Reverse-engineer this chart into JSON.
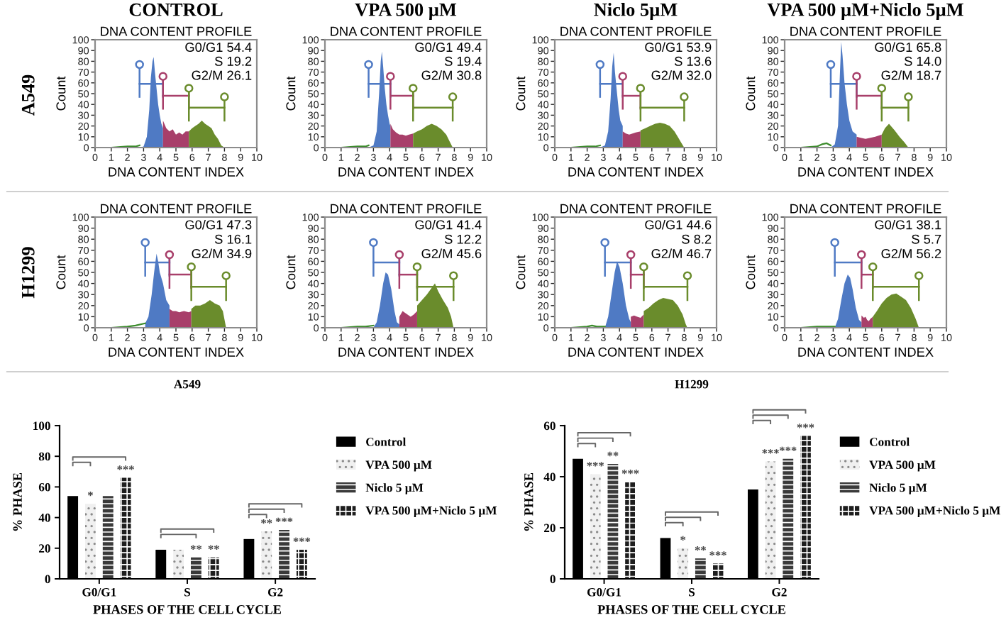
{
  "chart_data": [
    {
      "type": "other",
      "title": "A549"
    },
    {
      "type": "area",
      "title": "CONTROL",
      "subtitle": "DNA CONTENT PROFILE",
      "xlabel": "DNA CONTENT INDEX",
      "ylabel": "Count",
      "xlim": [
        0,
        10
      ],
      "ylim": [
        0,
        100
      ],
      "xticks": [
        0,
        1,
        2,
        3,
        4,
        5,
        6,
        7,
        8,
        9,
        10
      ],
      "yticks": [
        0,
        10,
        20,
        30,
        40,
        50,
        60,
        70,
        80,
        90,
        100
      ],
      "annotations": [
        "G0/G1 54.4",
        "S 19.2",
        "G2/M 26.1"
      ],
      "series": [
        {
          "type": "line",
          "color": "#3c8c2c",
          "x": [
            0,
            1,
            2,
            2.5,
            2.75
          ],
          "values": [
            0,
            0,
            1,
            1,
            2
          ]
        },
        {
          "color": "#4f7ac4",
          "x": [
            2.75,
            3.0,
            3.2,
            3.35,
            3.45,
            3.55,
            3.62,
            3.7,
            3.8,
            3.9,
            4.0,
            4.1,
            4.2
          ],
          "values": [
            0,
            1,
            10,
            35,
            65,
            80,
            84,
            70,
            55,
            40,
            30,
            22,
            18
          ]
        },
        {
          "color": "#a83f6a",
          "x": [
            4.2,
            4.4,
            4.6,
            4.8,
            5.0,
            5.2,
            5.4,
            5.6,
            5.8
          ],
          "values": [
            25,
            18,
            15,
            17,
            12,
            14,
            12,
            15,
            15
          ]
        },
        {
          "color": "#6a8c2c",
          "x": [
            5.8,
            6.0,
            6.2,
            6.4,
            6.6,
            6.8,
            7.0,
            7.2,
            7.4,
            7.6,
            7.8,
            8.0
          ],
          "values": [
            15,
            18,
            20,
            22,
            25,
            22,
            20,
            18,
            12,
            8,
            2,
            0
          ]
        }
      ]
    },
    {
      "type": "area",
      "title": "VPA 500 µM",
      "subtitle": "DNA CONTENT PROFILE",
      "xlabel": "DNA CONTENT INDEX",
      "ylabel": "Count",
      "xlim": [
        0,
        10
      ],
      "ylim": [
        0,
        100
      ],
      "xticks": [
        0,
        1,
        2,
        3,
        4,
        5,
        6,
        7,
        8,
        9,
        10
      ],
      "yticks": [
        0,
        10,
        20,
        30,
        40,
        50,
        60,
        70,
        80,
        90,
        100
      ],
      "annotations": [
        "G0/G1 49.4",
        "S 19.4",
        "G2/M 30.8"
      ],
      "series": [
        {
          "type": "line",
          "color": "#3c8c2c",
          "x": [
            0,
            1,
            2,
            2.5,
            2.7
          ],
          "values": [
            0,
            0,
            1,
            1,
            2
          ]
        },
        {
          "color": "#4f7ac4",
          "x": [
            2.7,
            3.0,
            3.2,
            3.35,
            3.45,
            3.52,
            3.6,
            3.7,
            3.8,
            3.9,
            4.0,
            4.05
          ],
          "values": [
            0,
            2,
            15,
            50,
            80,
            89,
            75,
            55,
            40,
            30,
            22,
            20
          ]
        },
        {
          "color": "#a83f6a",
          "x": [
            4.05,
            4.2,
            4.4,
            4.6,
            4.8,
            5.0,
            5.2,
            5.45
          ],
          "values": [
            22,
            17,
            14,
            12,
            12,
            11,
            12,
            13
          ]
        },
        {
          "color": "#6a8c2c",
          "x": [
            5.45,
            5.7,
            6.0,
            6.3,
            6.6,
            6.9,
            7.2,
            7.5,
            7.7,
            7.9
          ],
          "values": [
            13,
            15,
            17,
            20,
            22,
            20,
            17,
            12,
            6,
            0
          ]
        }
      ]
    },
    {
      "type": "area",
      "title": "Niclo 5µM",
      "subtitle": "DNA CONTENT PROFILE",
      "xlabel": "DNA CONTENT INDEX",
      "ylabel": "Count",
      "xlim": [
        0,
        10
      ],
      "ylim": [
        0,
        100
      ],
      "xticks": [
        0,
        1,
        2,
        3,
        4,
        5,
        6,
        7,
        8,
        9,
        10
      ],
      "yticks": [
        0,
        10,
        20,
        30,
        40,
        50,
        60,
        70,
        80,
        90,
        100
      ],
      "annotations": [
        "G0/G1 53.9",
        "S 13.6",
        "G2/M 32.0"
      ],
      "series": [
        {
          "type": "line",
          "color": "#3c8c2c",
          "x": [
            0,
            1,
            2,
            2.5,
            2.8
          ],
          "values": [
            0,
            0,
            1,
            1,
            2
          ]
        },
        {
          "color": "#4f7ac4",
          "x": [
            2.8,
            3.1,
            3.3,
            3.45,
            3.55,
            3.64,
            3.72,
            3.85,
            3.95,
            4.05,
            4.2
          ],
          "values": [
            0,
            2,
            15,
            45,
            75,
            88,
            70,
            50,
            35,
            25,
            20
          ]
        },
        {
          "color": "#a83f6a",
          "x": [
            4.2,
            4.4,
            4.6,
            4.8,
            5.0,
            5.3
          ],
          "values": [
            15,
            13,
            12,
            13,
            14,
            15
          ]
        },
        {
          "color": "#6a8c2c",
          "x": [
            5.3,
            5.6,
            5.9,
            6.2,
            6.5,
            6.8,
            7.1,
            7.4,
            7.6,
            7.8,
            8.0
          ],
          "values": [
            16,
            18,
            20,
            22,
            23,
            22,
            20,
            15,
            10,
            5,
            0
          ]
        }
      ]
    },
    {
      "type": "area",
      "title": "VPA 500 µM+Niclo 5µM",
      "subtitle": "DNA CONTENT PROFILE",
      "xlabel": "DNA CONTENT INDEX",
      "ylabel": "Count",
      "xlim": [
        0,
        10
      ],
      "ylim": [
        0,
        100
      ],
      "xticks": [
        0,
        1,
        2,
        3,
        4,
        5,
        6,
        7,
        8,
        9,
        10
      ],
      "yticks": [
        0,
        10,
        20,
        30,
        40,
        50,
        60,
        70,
        80,
        90,
        100
      ],
      "annotations": [
        "G0/G1 65.8",
        "S 14.0",
        "G2/M 18.7"
      ],
      "series": [
        {
          "type": "line",
          "color": "#3c8c2c",
          "x": [
            0,
            1,
            2,
            2.3,
            2.6,
            2.85
          ],
          "values": [
            0,
            0,
            1,
            3,
            4,
            2
          ]
        },
        {
          "color": "#4f7ac4",
          "x": [
            2.85,
            3.1,
            3.3,
            3.42,
            3.5,
            3.58,
            3.7,
            3.85,
            4.0,
            4.2,
            4.45
          ],
          "values": [
            0,
            3,
            20,
            70,
            98,
            85,
            60,
            40,
            25,
            15,
            12
          ]
        },
        {
          "color": "#a83f6a",
          "x": [
            4.45,
            4.7,
            5.0,
            5.3,
            5.6,
            6.0
          ],
          "values": [
            10,
            9,
            8,
            9,
            10,
            12
          ]
        },
        {
          "color": "#6a8c2c",
          "x": [
            6.0,
            6.2,
            6.45,
            6.8,
            7.1,
            7.4,
            7.65
          ],
          "values": [
            12,
            18,
            22,
            16,
            10,
            5,
            0
          ]
        }
      ]
    },
    {
      "type": "other",
      "title": "H1299"
    },
    {
      "type": "area",
      "title": "DNA CONTENT PROFILE",
      "xlabel": "DNA CONTENT INDEX",
      "ylabel": "Count",
      "xlim": [
        0,
        10
      ],
      "ylim": [
        0,
        100
      ],
      "xticks": [
        0,
        1,
        2,
        3,
        4,
        5,
        6,
        7,
        8,
        9,
        10
      ],
      "yticks": [
        0,
        10,
        20,
        30,
        40,
        50,
        60,
        70,
        80,
        90,
        100
      ],
      "annotations": [
        "G0/G1 47.3",
        "S 16.1",
        "G2/M 34.9"
      ],
      "series": [
        {
          "type": "line",
          "color": "#3c8c2c",
          "x": [
            0,
            1,
            2,
            2.5,
            3.1
          ],
          "values": [
            0,
            0,
            1,
            2,
            4
          ]
        },
        {
          "color": "#4f7ac4",
          "x": [
            3.1,
            3.3,
            3.5,
            3.65,
            3.8,
            3.9,
            4.0,
            4.2,
            4.4,
            4.6
          ],
          "values": [
            4,
            10,
            30,
            50,
            67,
            60,
            50,
            40,
            25,
            20
          ]
        },
        {
          "color": "#a83f6a",
          "x": [
            4.6,
            4.8,
            5.0,
            5.2,
            5.5,
            5.8,
            5.95
          ],
          "values": [
            17,
            15,
            15,
            14,
            15,
            14,
            15
          ]
        },
        {
          "color": "#6a8c2c",
          "x": [
            5.95,
            6.2,
            6.5,
            6.8,
            7.1,
            7.4,
            7.7,
            7.9,
            8.1
          ],
          "values": [
            17,
            20,
            20,
            22,
            25,
            22,
            20,
            15,
            0
          ]
        }
      ]
    },
    {
      "type": "area",
      "title": "DNA CONTENT PROFILE",
      "xlabel": "DNA CONTENT INDEX",
      "ylabel": "Count",
      "xlim": [
        0,
        10
      ],
      "ylim": [
        0,
        100
      ],
      "xticks": [
        0,
        1,
        2,
        3,
        4,
        5,
        6,
        7,
        8,
        9,
        10
      ],
      "yticks": [
        0,
        10,
        20,
        30,
        40,
        50,
        60,
        70,
        80,
        90,
        100
      ],
      "annotations": [
        "G0/G1 41.4",
        "S 12.2",
        "G2/M 45.6"
      ],
      "series": [
        {
          "type": "line",
          "color": "#3c8c2c",
          "x": [
            0,
            1,
            2,
            2.5,
            3.0
          ],
          "values": [
            0,
            0,
            1,
            1,
            2
          ]
        },
        {
          "color": "#4f7ac4",
          "x": [
            3.0,
            3.2,
            3.4,
            3.6,
            3.75,
            3.9,
            4.1,
            4.3,
            4.45,
            4.6
          ],
          "values": [
            0,
            5,
            20,
            40,
            50,
            48,
            35,
            15,
            5,
            3
          ]
        },
        {
          "color": "#a83f6a",
          "x": [
            4.6,
            4.8,
            5.0,
            5.3,
            5.5,
            5.7
          ],
          "values": [
            10,
            15,
            13,
            10,
            12,
            15
          ]
        },
        {
          "color": "#6a8c2c",
          "x": [
            5.7,
            6.0,
            6.3,
            6.6,
            6.8,
            7.0,
            7.3,
            7.6,
            7.8,
            7.95
          ],
          "values": [
            20,
            25,
            30,
            36,
            40,
            33,
            25,
            18,
            10,
            0
          ]
        }
      ]
    },
    {
      "type": "area",
      "title": "DNA CONTENT PROFILE",
      "xlabel": "DNA CONTENT INDEX",
      "ylabel": "Count",
      "xlim": [
        0,
        10
      ],
      "ylim": [
        0,
        100
      ],
      "xticks": [
        0,
        1,
        2,
        3,
        4,
        5,
        6,
        7,
        8,
        9,
        10
      ],
      "yticks": [
        0,
        10,
        20,
        30,
        40,
        50,
        60,
        70,
        80,
        90,
        100
      ],
      "annotations": [
        "G0/G1 44.6",
        "S 8.2",
        "G2/M 46.7"
      ],
      "series": [
        {
          "type": "line",
          "color": "#3c8c2c",
          "x": [
            0,
            1,
            2,
            2.3,
            2.6,
            3.1
          ],
          "values": [
            0,
            0,
            1,
            2,
            1,
            1
          ]
        },
        {
          "color": "#4f7ac4",
          "x": [
            3.1,
            3.3,
            3.5,
            3.7,
            3.85,
            4.0,
            4.2,
            4.4,
            4.6,
            4.7
          ],
          "values": [
            0,
            10,
            30,
            50,
            60,
            55,
            40,
            20,
            8,
            5
          ]
        },
        {
          "color": "#a83f6a",
          "x": [
            4.7,
            4.9,
            5.1,
            5.3,
            5.5
          ],
          "values": [
            10,
            11,
            10,
            9,
            12
          ]
        },
        {
          "color": "#6a8c2c",
          "x": [
            5.5,
            5.8,
            6.1,
            6.4,
            6.7,
            7.0,
            7.3,
            7.6,
            7.9,
            8.1,
            8.2
          ],
          "values": [
            15,
            18,
            22,
            25,
            27,
            26,
            25,
            20,
            12,
            3,
            0
          ]
        }
      ]
    },
    {
      "type": "area",
      "title": "DNA CONTENT PROFILE",
      "xlabel": "DNA CONTENT INDEX",
      "ylabel": "Count",
      "xlim": [
        0,
        10
      ],
      "ylim": [
        0,
        100
      ],
      "xticks": [
        0,
        1,
        2,
        3,
        4,
        5,
        6,
        7,
        8,
        9,
        10
      ],
      "yticks": [
        0,
        10,
        20,
        30,
        40,
        50,
        60,
        70,
        80,
        90,
        100
      ],
      "annotations": [
        "G0/G1 38.1",
        "S 5.7",
        "G2/M 56.2"
      ],
      "series": [
        {
          "type": "line",
          "color": "#3c8c2c",
          "x": [
            0,
            1,
            2,
            2.5,
            3.1
          ],
          "values": [
            0,
            0,
            1,
            1,
            1
          ]
        },
        {
          "color": "#4f7ac4",
          "x": [
            3.1,
            3.3,
            3.5,
            3.7,
            3.9,
            4.05,
            4.2,
            4.4,
            4.6,
            4.75
          ],
          "values": [
            0,
            8,
            25,
            40,
            48,
            45,
            35,
            18,
            7,
            5
          ]
        },
        {
          "color": "#a83f6a",
          "x": [
            4.75,
            4.9,
            5.0,
            5.1,
            5.2,
            5.3,
            5.45
          ],
          "values": [
            11,
            9,
            10,
            7,
            6,
            8,
            10
          ]
        },
        {
          "color": "#6a8c2c",
          "x": [
            5.45,
            5.7,
            6.0,
            6.3,
            6.6,
            6.9,
            7.2,
            7.5,
            7.8,
            8.1,
            8.3
          ],
          "values": [
            10,
            15,
            22,
            27,
            30,
            31,
            28,
            25,
            18,
            8,
            0
          ]
        }
      ]
    },
    {
      "type": "bar",
      "title": "A549",
      "xlabel": "PHASES OF THE CELL CYCLE",
      "ylabel": "% PHASE",
      "categories": [
        "G0/G1",
        "S",
        "G2"
      ],
      "ylim": [
        0,
        100
      ],
      "yticks": [
        0,
        20,
        40,
        60,
        80,
        100
      ],
      "legend": "right",
      "series": [
        {
          "name": "Control",
          "color": "#000000",
          "values": [
            54,
            19,
            26
          ]
        },
        {
          "name": "VPA 500 µM",
          "color": "#f0f0f0",
          "values": [
            49,
            19,
            31
          ],
          "value_labels": [
            "*",
            null,
            "**"
          ]
        },
        {
          "name": "Niclo 5 µM",
          "color": "#3a3a3a",
          "values": [
            54,
            14,
            32
          ],
          "value_labels": [
            null,
            "**",
            "***"
          ]
        },
        {
          "name": "VPA 500 µM+Niclo 5 µM",
          "color": "#1e1e1e",
          "values": [
            66,
            14,
            19
          ],
          "value_labels": [
            "***",
            "**",
            "***"
          ]
        }
      ]
    },
    {
      "type": "bar",
      "title": "H1299",
      "xlabel": "PHASES OF THE CELL CYCLE",
      "ylabel": "% PHASE",
      "categories": [
        "G0/G1",
        "S",
        "G2"
      ],
      "ylim": [
        0,
        60
      ],
      "yticks": [
        0,
        20,
        40,
        60
      ],
      "legend": "right",
      "series": [
        {
          "name": "Control",
          "color": "#000000",
          "values": [
            47,
            16,
            35
          ]
        },
        {
          "name": "VPA 500 µM",
          "color": "#f0f0f0",
          "values": [
            41,
            12,
            46
          ],
          "value_labels": [
            "***",
            "*",
            "***"
          ]
        },
        {
          "name": "Niclo 5 µM",
          "color": "#3a3a3a",
          "values": [
            45,
            8,
            47
          ],
          "value_labels": [
            "**",
            "**",
            "***"
          ]
        },
        {
          "name": "VPA 500 µM+Niclo 5 µM",
          "color": "#1e1e1e",
          "values": [
            38,
            6,
            56
          ],
          "value_labels": [
            "***",
            "***",
            "***"
          ]
        }
      ]
    }
  ]
}
